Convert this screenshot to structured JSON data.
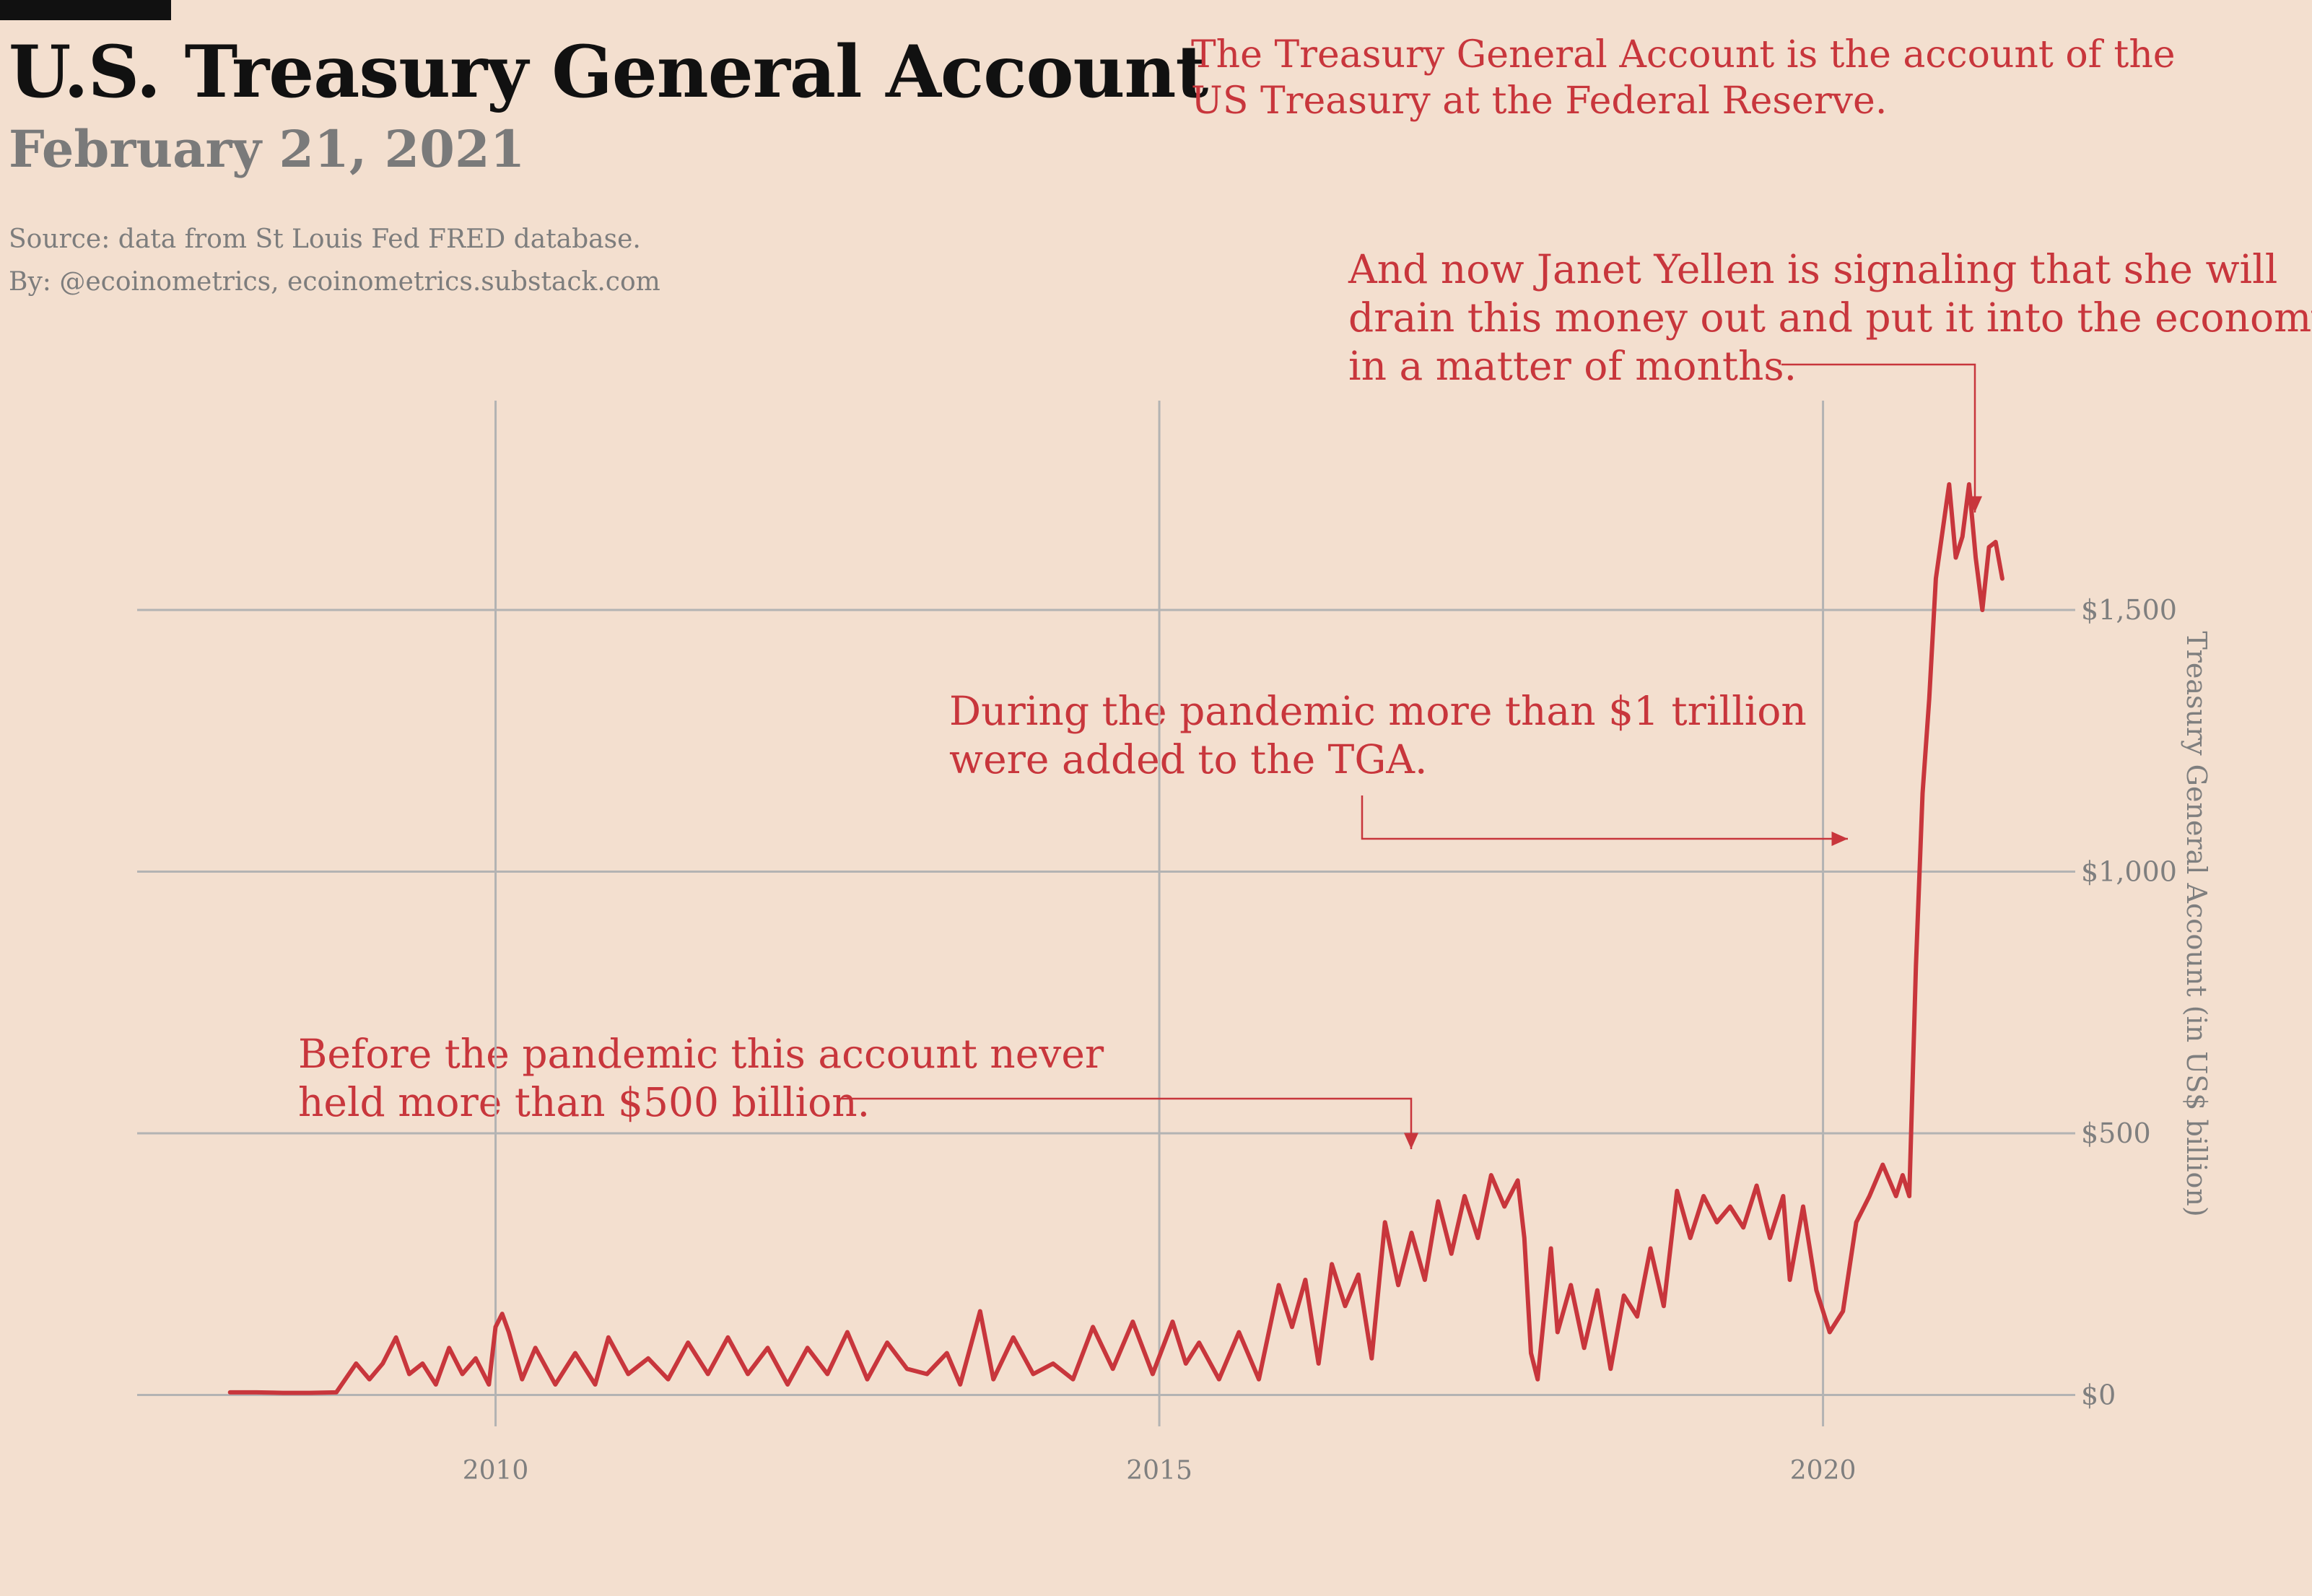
{
  "header": {
    "title": "U.S. Treasury General Account",
    "date": "February 21, 2021",
    "source_line": "Source: data from  St Louis Fed FRED database.",
    "by_line": "By: @ecoinometrics, ecoinometrics.substack.com"
  },
  "annotations": {
    "definition": [
      "The Treasury General Account is the account of the",
      "US Treasury at the Federal Reserve."
    ],
    "yellen": [
      "And now Janet Yellen is signaling that she will",
      "drain this money out and put it into the economy",
      "in a matter of months."
    ],
    "pandemic": [
      "During the pandemic more than $1 trillion",
      "were added to the TGA."
    ],
    "before": [
      "Before the pandemic this account never",
      "held more than $500 billion."
    ]
  },
  "colors": {
    "line": "#c8363c",
    "grid": "#b3b3b3",
    "axis_text": "#7f7f7f",
    "background": "#f3dfcf"
  },
  "chart_data": {
    "type": "line",
    "title": "U.S. Treasury General Account",
    "xlabel": "",
    "ylabel": "Treasury General Account (in US$ billion)",
    "xlim": [
      2007.3,
      2021.9
    ],
    "ylim": [
      -60,
      1900
    ],
    "x_ticks": [
      2010,
      2015,
      2020
    ],
    "x_tick_labels": [
      "2010",
      "2015",
      "2020"
    ],
    "y_ticks": [
      0,
      500,
      1000,
      1500
    ],
    "y_tick_labels": [
      "$0",
      "$500",
      "$1,000",
      "$1,500"
    ],
    "grid": true,
    "y_axis_side": "right",
    "series": [
      {
        "name": "",
        "points": [
          [
            2008.0,
            5
          ],
          [
            2008.2,
            5
          ],
          [
            2008.4,
            4
          ],
          [
            2008.6,
            4
          ],
          [
            2008.8,
            5
          ],
          [
            2008.95,
            60
          ],
          [
            2009.05,
            30
          ],
          [
            2009.15,
            60
          ],
          [
            2009.25,
            110
          ],
          [
            2009.35,
            40
          ],
          [
            2009.45,
            60
          ],
          [
            2009.55,
            20
          ],
          [
            2009.65,
            90
          ],
          [
            2009.75,
            40
          ],
          [
            2009.85,
            70
          ],
          [
            2009.95,
            20
          ],
          [
            2010.0,
            130
          ],
          [
            2010.05,
            155
          ],
          [
            2010.1,
            120
          ],
          [
            2010.2,
            30
          ],
          [
            2010.3,
            90
          ],
          [
            2010.45,
            20
          ],
          [
            2010.6,
            80
          ],
          [
            2010.75,
            20
          ],
          [
            2010.85,
            110
          ],
          [
            2011.0,
            40
          ],
          [
            2011.15,
            70
          ],
          [
            2011.3,
            30
          ],
          [
            2011.45,
            100
          ],
          [
            2011.6,
            40
          ],
          [
            2011.75,
            110
          ],
          [
            2011.9,
            40
          ],
          [
            2012.05,
            90
          ],
          [
            2012.2,
            20
          ],
          [
            2012.35,
            90
          ],
          [
            2012.5,
            40
          ],
          [
            2012.65,
            120
          ],
          [
            2012.8,
            30
          ],
          [
            2012.95,
            100
          ],
          [
            2013.1,
            50
          ],
          [
            2013.25,
            40
          ],
          [
            2013.4,
            80
          ],
          [
            2013.5,
            20
          ],
          [
            2013.65,
            160
          ],
          [
            2013.75,
            30
          ],
          [
            2013.9,
            110
          ],
          [
            2014.05,
            40
          ],
          [
            2014.2,
            60
          ],
          [
            2014.35,
            30
          ],
          [
            2014.5,
            130
          ],
          [
            2014.65,
            50
          ],
          [
            2014.8,
            140
          ],
          [
            2014.95,
            40
          ],
          [
            2015.1,
            140
          ],
          [
            2015.2,
            60
          ],
          [
            2015.3,
            100
          ],
          [
            2015.45,
            30
          ],
          [
            2015.6,
            120
          ],
          [
            2015.75,
            30
          ],
          [
            2015.9,
            210
          ],
          [
            2016.0,
            130
          ],
          [
            2016.1,
            220
          ],
          [
            2016.2,
            60
          ],
          [
            2016.3,
            250
          ],
          [
            2016.4,
            170
          ],
          [
            2016.5,
            230
          ],
          [
            2016.6,
            70
          ],
          [
            2016.7,
            330
          ],
          [
            2016.8,
            210
          ],
          [
            2016.9,
            310
          ],
          [
            2017.0,
            220
          ],
          [
            2017.1,
            370
          ],
          [
            2017.2,
            270
          ],
          [
            2017.3,
            380
          ],
          [
            2017.4,
            300
          ],
          [
            2017.5,
            420
          ],
          [
            2017.6,
            360
          ],
          [
            2017.7,
            410
          ],
          [
            2017.75,
            300
          ],
          [
            2017.8,
            80
          ],
          [
            2017.85,
            30
          ],
          [
            2017.95,
            280
          ],
          [
            2018.0,
            120
          ],
          [
            2018.1,
            210
          ],
          [
            2018.2,
            90
          ],
          [
            2018.3,
            200
          ],
          [
            2018.4,
            50
          ],
          [
            2018.5,
            190
          ],
          [
            2018.6,
            150
          ],
          [
            2018.7,
            280
          ],
          [
            2018.8,
            170
          ],
          [
            2018.9,
            390
          ],
          [
            2019.0,
            300
          ],
          [
            2019.1,
            380
          ],
          [
            2019.2,
            330
          ],
          [
            2019.3,
            360
          ],
          [
            2019.4,
            320
          ],
          [
            2019.5,
            400
          ],
          [
            2019.6,
            300
          ],
          [
            2019.7,
            380
          ],
          [
            2019.75,
            220
          ],
          [
            2019.85,
            360
          ],
          [
            2019.95,
            200
          ],
          [
            2020.05,
            120
          ],
          [
            2020.15,
            160
          ],
          [
            2020.25,
            330
          ],
          [
            2020.35,
            380
          ],
          [
            2020.45,
            440
          ],
          [
            2020.55,
            380
          ],
          [
            2020.6,
            420
          ],
          [
            2020.65,
            380
          ],
          [
            2020.7,
            820
          ],
          [
            2020.75,
            1150
          ],
          [
            2020.8,
            1330
          ],
          [
            2020.85,
            1560
          ],
          [
            2020.9,
            1650
          ],
          [
            2020.95,
            1740
          ],
          [
            2021.0,
            1600
          ],
          [
            2021.05,
            1640
          ],
          [
            2021.1,
            1740
          ],
          [
            2021.15,
            1600
          ],
          [
            2021.2,
            1500
          ],
          [
            2021.25,
            1620
          ],
          [
            2021.3,
            1630
          ],
          [
            2021.35,
            1560
          ]
        ]
      }
    ],
    "annotation_arrows": [
      {
        "label": "before",
        "from": [
          2016.8,
          510
        ],
        "to": [
          2016.8,
          470
        ]
      },
      {
        "label": "pandemic",
        "from": [
          2017.3,
          1060
        ],
        "to": [
          2021.1,
          1060
        ]
      },
      {
        "label": "yellen",
        "from": [
          2020.7,
          1810
        ],
        "to": [
          2021.3,
          1680
        ]
      }
    ]
  }
}
